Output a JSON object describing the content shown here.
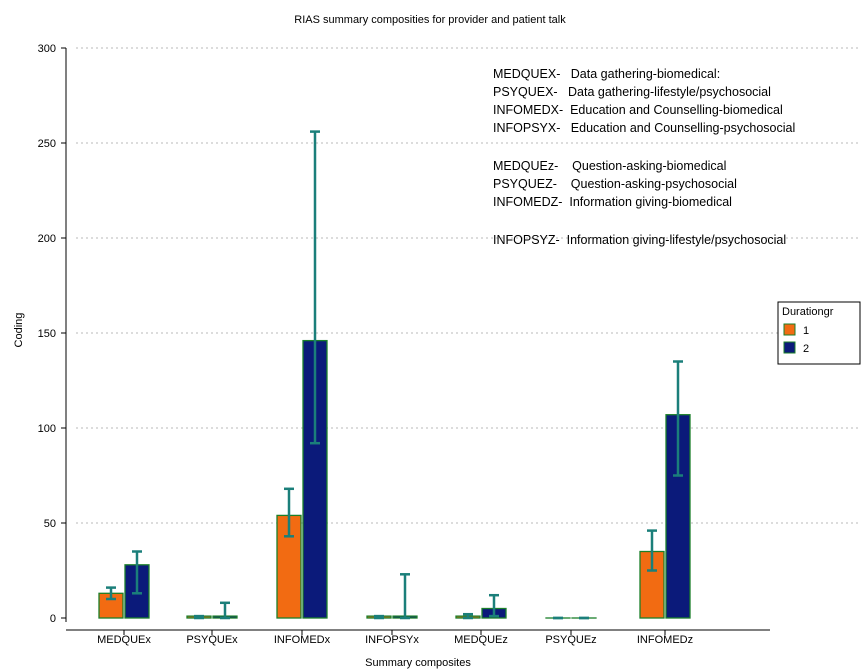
{
  "chart_data": {
    "type": "bar",
    "title": "RIAS summary composities for provider and patient talk",
    "xlabel": "Summary composites",
    "ylabel": "Coding",
    "ylim": [
      0,
      300
    ],
    "yticks": [
      0,
      50,
      100,
      150,
      200,
      250,
      300
    ],
    "categories": [
      "MEDQUEx",
      "PSYQUEx",
      "INFOMEDx",
      "INFOPSYx",
      "MEDQUEz",
      "PSYQUEz",
      "INFOMEDz"
    ],
    "legend": {
      "title": "Durationgr",
      "placement": "right"
    },
    "series": [
      {
        "name": "1",
        "color": "#f26b12",
        "values": [
          13,
          1,
          54,
          1,
          1,
          0,
          35
        ],
        "error_low": [
          10,
          0,
          43,
          0,
          0,
          0,
          25
        ],
        "error_high": [
          16,
          1,
          68,
          1,
          2,
          0,
          46
        ]
      },
      {
        "name": "2",
        "color": "#0b1a7a",
        "values": [
          28,
          1,
          146,
          1,
          5,
          0,
          107
        ],
        "error_low": [
          13,
          0,
          92,
          0,
          1,
          0,
          75
        ],
        "error_high": [
          35,
          8,
          256,
          23,
          12,
          0,
          135
        ]
      }
    ],
    "error_bar_color": "#1b7f7a",
    "grid": "dotted",
    "annotations": [
      "MEDQUEX-   Data gathering-biomedical:",
      "PSYQUEX-   Data gathering-lifestyle/psychosocial",
      "INFOMEDX-  Education and Counselling-biomedical",
      "INFOPSYX-   Education and Counselling-psychosocial",
      "MEDQUEz-    Question-asking-biomedical",
      "PSYQUEZ-    Question-asking-psychosocial",
      "INFOMEDZ-  Information giving-biomedical",
      "INFOPSYZ-  Information giving-lifestyle/psychosocial"
    ]
  }
}
